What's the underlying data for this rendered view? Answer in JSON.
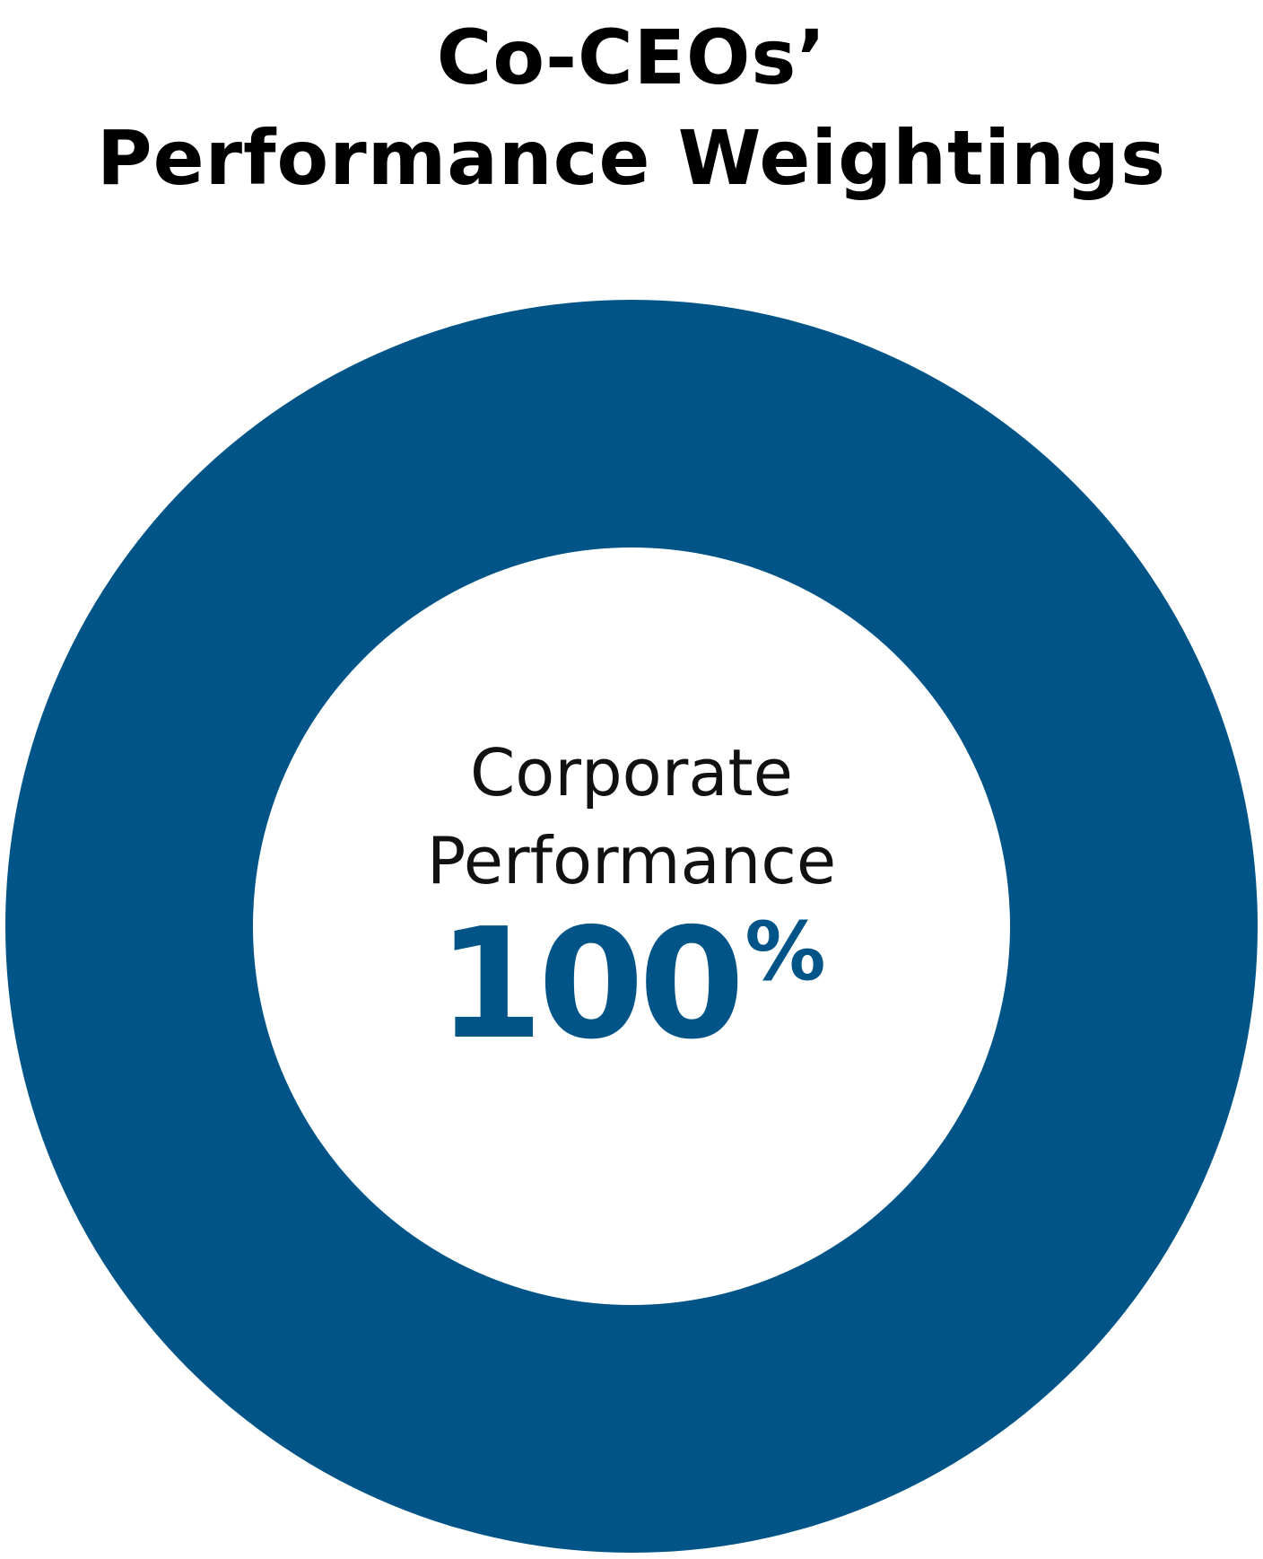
{
  "chart_data": {
    "type": "pie",
    "style": "donut",
    "title_lines": [
      "Co-CEOs’",
      "Performance Weightings"
    ],
    "slices": [
      {
        "label_lines": [
          "Corporate",
          "Performance"
        ],
        "value": 100,
        "value_number": "100",
        "value_unit": "%",
        "color": "#005487"
      }
    ]
  }
}
